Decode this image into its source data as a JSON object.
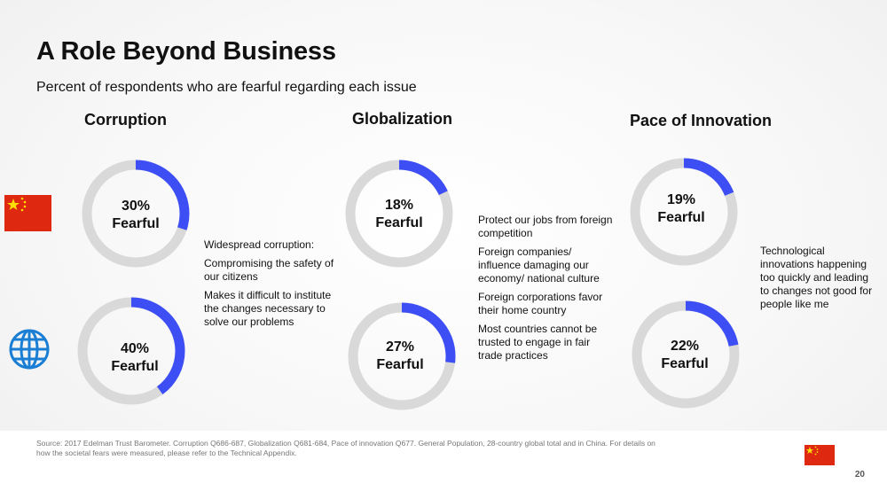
{
  "page": {
    "title": "A Role Beyond Business",
    "subtitle": "Percent of respondents who are fearful regarding each issue",
    "source": "Source: 2017 Edelman Trust Barometer. Corruption Q686-687, Globalization Q681-684, Pace of innovation Q677. General Population, 28-country global total and in China. For details on how the societal fears were measured, please refer to the Technical Appendix.",
    "page_number": "20"
  },
  "colors": {
    "accent": "#3d4ef5",
    "track": "#d9d9d9",
    "flag_red": "#de2910",
    "flag_star": "#ffde00",
    "globe_blue": "#1a7fd4"
  },
  "icons": {
    "china_flag": "china-flag-icon",
    "global": "globe-icon"
  },
  "chart_data": {
    "type": "donut",
    "categories": [
      "Corruption",
      "Globalization",
      "Pace of Innovation"
    ],
    "series": [
      {
        "values": [
          30,
          18,
          19
        ],
        "labels": [
          "30%\nFearful",
          "18%\nFearful",
          "19%\nFearful"
        ]
      },
      {
        "values": [
          40,
          27,
          22
        ],
        "labels": [
          "40%\nFearful",
          "27%\nFearful",
          "22%\nFearful"
        ]
      }
    ],
    "value_unit": "percent",
    "annotations": {
      "corruption": [
        "Widespread corruption:",
        "Compromising the safety of our citizens",
        "Makes it difficult to institute the changes necessary to solve our problems"
      ],
      "globalization": [
        "Protect our jobs from foreign competition",
        "Foreign companies/ influence damaging our economy/ national culture",
        "Foreign corporations favor their home country",
        "Most countries cannot be trusted to engage in fair trade practices"
      ],
      "innovation": [
        "Technological innovations happening too quickly and leading to changes not good for people like me"
      ]
    }
  }
}
